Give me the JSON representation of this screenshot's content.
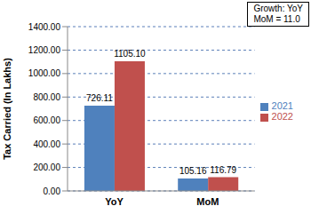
{
  "chart_data": {
    "type": "bar",
    "y_label": "Tax Carried (In Lakhs)",
    "categories": [
      "YoY",
      "MoM"
    ],
    "series": [
      {
        "name": "2021",
        "color": "#4f81bd",
        "values": [
          726.11,
          105.16
        ],
        "value_labels": [
          "726.11",
          "105.16"
        ]
      },
      {
        "name": "2022",
        "color": "#c0504d",
        "values": [
          1105.1,
          116.79
        ],
        "value_labels": [
          "1105.10",
          "116.79"
        ]
      }
    ],
    "ylim": [
      0,
      1400
    ],
    "yticks": [
      {
        "value": 0,
        "label": "0.00"
      },
      {
        "value": 200,
        "label": "200.00"
      },
      {
        "value": 400,
        "label": "400.00"
      },
      {
        "value": 600,
        "label": "600.00"
      },
      {
        "value": 800,
        "label": "800.00"
      },
      {
        "value": 1000,
        "label": "1000.00"
      },
      {
        "value": 1200,
        "label": "1200.00"
      },
      {
        "value": 1400,
        "label": "1400.00"
      }
    ],
    "grid": true,
    "legend": "right",
    "data_labels": true,
    "annotations": [
      "Growth: YoY",
      "MoM = 11.0"
    ]
  }
}
